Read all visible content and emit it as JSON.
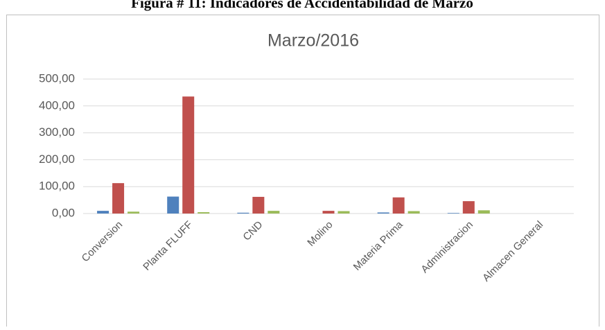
{
  "chart_data": {
    "type": "bar",
    "caption": "Figura # 11: Indicadores de Accidentabilidad de Marzo",
    "title": "Marzo/2016",
    "categories": [
      "Conversion",
      "Planta FLUFF",
      "CND",
      "Molino",
      "Materia Prima",
      "Administracion",
      "Almacen General"
    ],
    "series": [
      {
        "color": "#4f81bd",
        "values": [
          10,
          63,
          3,
          0,
          4,
          2,
          0
        ]
      },
      {
        "color": "#c0504d",
        "values": [
          113,
          435,
          62,
          10,
          60,
          46,
          0
        ]
      },
      {
        "color": "#9bbb59",
        "values": [
          7,
          5,
          10,
          9,
          9,
          12,
          0
        ]
      }
    ],
    "ylim": [
      0,
      500
    ],
    "yticks": [
      {
        "value": 0,
        "label": "0,00"
      },
      {
        "value": 100,
        "label": "100,00"
      },
      {
        "value": 200,
        "label": "200,00"
      },
      {
        "value": 300,
        "label": "300,00"
      },
      {
        "value": 400,
        "label": "400,00"
      },
      {
        "value": 500,
        "label": "500,00"
      }
    ],
    "grid": true
  }
}
